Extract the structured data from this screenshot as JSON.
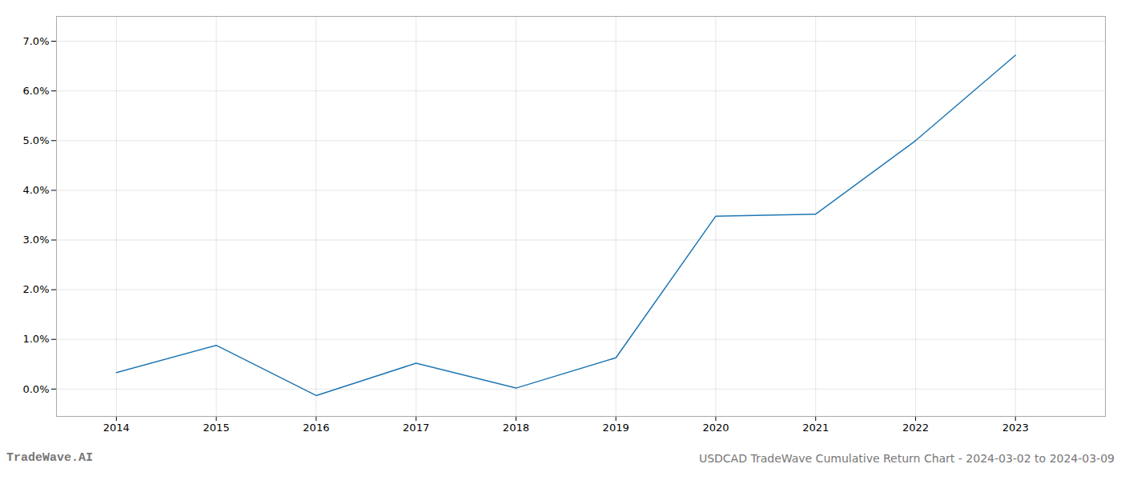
{
  "chart_data": {
    "type": "line",
    "x": [
      2014,
      2015,
      2016,
      2017,
      2018,
      2019,
      2020,
      2021,
      2022,
      2023
    ],
    "values": [
      0.0033,
      0.0088,
      -0.0013,
      0.0052,
      0.0002,
      0.0063,
      0.0348,
      0.0352,
      0.05,
      0.0672
    ],
    "color": "#1f77b4",
    "xlim": [
      2013.4,
      2023.9
    ],
    "xticks": [
      2014,
      2015,
      2016,
      2017,
      2018,
      2019,
      2020,
      2021,
      2022,
      2023
    ],
    "ylim": [
      -0.0055,
      0.075
    ],
    "yticks": [
      {
        "value": 0.0,
        "label": "0.0%"
      },
      {
        "value": 0.01,
        "label": "1.0%"
      },
      {
        "value": 0.02,
        "label": "2.0%"
      },
      {
        "value": 0.03,
        "label": "3.0%"
      },
      {
        "value": 0.04,
        "label": "4.0%"
      },
      {
        "value": 0.05,
        "label": "5.0%"
      },
      {
        "value": 0.06,
        "label": "6.0%"
      },
      {
        "value": 0.07,
        "label": "7.0%"
      }
    ],
    "grid": true,
    "annotations": [
      "TradeWave.AI",
      "USDCAD TradeWave Cumulative Return Chart - 2024-03-02 to 2024-03-09"
    ]
  }
}
